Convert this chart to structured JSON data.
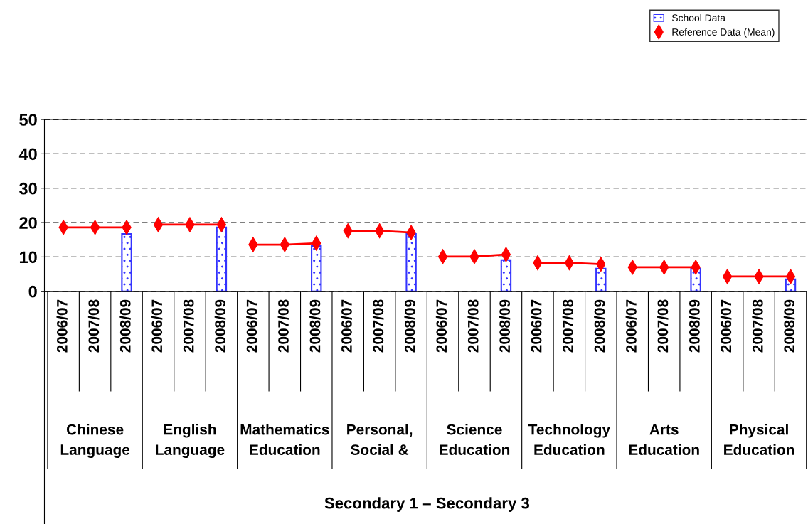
{
  "chart_data": {
    "type": "bar",
    "categories": [
      "2006/07",
      "2007/08",
      "2008/09",
      "2006/07",
      "2007/08",
      "2008/09",
      "2006/07",
      "2007/08",
      "2008/09",
      "2006/07",
      "2007/08",
      "2008/09",
      "2006/07",
      "2007/08",
      "2008/09",
      "2006/07",
      "2007/08",
      "2008/09",
      "2006/07",
      "2007/08",
      "2008/09",
      "2006/07",
      "2007/08",
      "2008/09"
    ],
    "series": [
      {
        "name": "School Data",
        "color": "#3333ff",
        "values": [
          null,
          null,
          16.7,
          null,
          null,
          18.6,
          null,
          null,
          13.2,
          null,
          null,
          16.7,
          null,
          null,
          9.1,
          null,
          null,
          6.6,
          null,
          null,
          6.6,
          null,
          null,
          3.5
        ]
      },
      {
        "name": "Reference Data (Mean)",
        "type": "line",
        "color": "#ff0000",
        "marker": "diamond",
        "values": [
          18.6,
          18.6,
          18.6,
          19.4,
          19.4,
          19.4,
          13.6,
          13.6,
          14.0,
          17.6,
          17.6,
          17.1,
          10.1,
          10.1,
          10.7,
          8.3,
          8.3,
          7.9,
          7.0,
          7.0,
          7.0,
          4.3,
          4.3,
          4.3
        ]
      }
    ],
    "annotations": [
      "Chinese\nLanguage",
      "English\nLanguage",
      "Mathematics\nEducation",
      "Personal,\nSocial &",
      "Science\nEducation",
      "Technology\nEducation",
      "Arts\nEducation",
      "Physical\nEducation",
      "Secondary 1 – Secondary 3"
    ],
    "ylim": [
      0,
      50
    ],
    "yticks": [
      0,
      10,
      20,
      30,
      40,
      50
    ],
    "grid": "y",
    "legend": "top right"
  }
}
